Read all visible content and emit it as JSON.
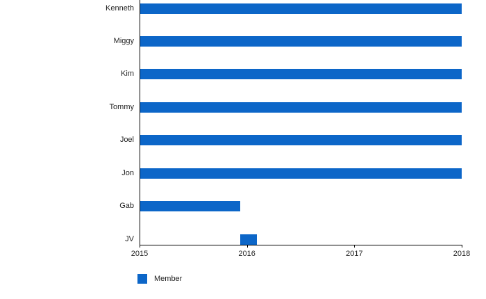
{
  "chart_data": {
    "type": "bar",
    "orientation": "horizontal",
    "title": "",
    "categories": [
      "Kenneth",
      "Miggy",
      "Kim",
      "Tommy",
      "Joel",
      "Jon",
      "Gab",
      "JV"
    ],
    "series": [
      {
        "name": "Member",
        "color": "#0c66c8",
        "ranges": [
          [
            2015,
            2018
          ],
          [
            2015,
            2018
          ],
          [
            2015,
            2018
          ],
          [
            2015,
            2018
          ],
          [
            2015,
            2018
          ],
          [
            2015,
            2018
          ],
          [
            2015,
            2015.94
          ],
          [
            2015.94,
            2016.09
          ]
        ]
      }
    ],
    "x_ticks": [
      "2015",
      "2016",
      "2017",
      "2018"
    ],
    "xlim": [
      2015,
      2018
    ],
    "grid": false,
    "legend": {
      "position": "bottom-left",
      "entries": [
        "Member"
      ]
    }
  },
  "legend": {
    "member_label": "Member"
  },
  "colors": {
    "bar": "#0c66c8",
    "text": "#222222",
    "axis": "#000000",
    "background": "#ffffff"
  }
}
